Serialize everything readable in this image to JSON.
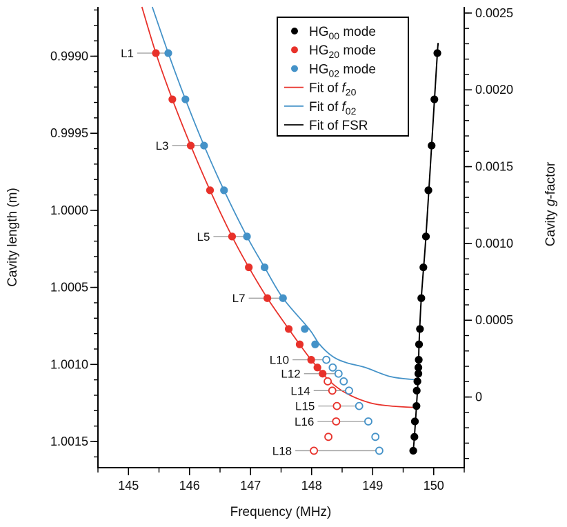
{
  "chart_data": {
    "type": "scatter",
    "xlabel": "Frequency (MHz)",
    "ylabel": "Cavity length (m)",
    "y2label_parts": [
      "Cavity ",
      "g",
      "-factor"
    ],
    "xlim": [
      144.5,
      150.5
    ],
    "ylim": [
      0.99868,
      1.00167
    ],
    "y_inverted": true,
    "y2lim": [
      -0.00046,
      0.00254
    ],
    "x_ticks": [
      "145",
      "146",
      "147",
      "148",
      "149",
      "150"
    ],
    "x_tick_values": [
      145,
      146,
      147,
      148,
      149,
      150
    ],
    "y_ticks": [
      "0.9990",
      "0.9995",
      "1.0000",
      "1.0005",
      "1.0010",
      "1.0015"
    ],
    "y_tick_values": [
      0.999,
      0.9995,
      1.0,
      1.0005,
      1.001,
      1.0015
    ],
    "y2_ticks": [
      "0.0025",
      "0.0020",
      "0.0015",
      "0.0010",
      "0.0005",
      "0"
    ],
    "y2_tick_values": [
      0.0025,
      0.002,
      0.0015,
      0.001,
      0.0005,
      0
    ],
    "grid": false,
    "legend_position": "top-right",
    "colors": {
      "hg00": "#000000",
      "hg20": "#e8312a",
      "hg02": "#4492c8",
      "connector": "#999999"
    },
    "legend": [
      {
        "kind": "marker",
        "color_key": "hg00",
        "base": "HG",
        "sub": "00",
        "rest": " mode"
      },
      {
        "kind": "marker",
        "color_key": "hg20",
        "base": "HG",
        "sub": "20",
        "rest": " mode"
      },
      {
        "kind": "marker",
        "color_key": "hg02",
        "base": "HG",
        "sub": "02",
        "rest": " mode"
      },
      {
        "kind": "line",
        "color_key": "hg20",
        "base": "Fit of ",
        "ital": "f",
        "sub": "20",
        "rest": ""
      },
      {
        "kind": "line",
        "color_key": "hg02",
        "base": "Fit of ",
        "ital": "f",
        "sub": "02",
        "rest": ""
      },
      {
        "kind": "line",
        "color_key": "hg00",
        "base": "Fit of FSR",
        "ital": "",
        "sub": "",
        "rest": ""
      }
    ],
    "lengths": [
      0.99898,
      0.99928,
      0.99958,
      0.99987,
      1.00017,
      1.00037,
      1.00057,
      1.00077,
      1.00087,
      1.00097,
      1.00102,
      1.00106,
      1.00111,
      1.00117,
      1.00127,
      1.00137,
      1.00147,
      1.00156
    ],
    "row_labels": [
      "L1",
      "",
      "L3",
      "",
      "L5",
      "",
      "L7",
      "",
      "",
      "L10",
      "",
      "L12",
      "",
      "L14",
      "L15",
      "L16",
      "",
      "L18"
    ],
    "series": [
      {
        "name": "HG00 mode",
        "color_key": "hg00",
        "x": [
          150.06,
          150.011,
          149.966,
          149.913,
          149.873,
          149.831,
          149.797,
          149.775,
          149.76,
          149.755,
          149.749,
          149.749,
          149.733,
          149.722,
          149.718,
          149.692,
          149.684,
          149.665
        ],
        "filled": [
          true,
          true,
          true,
          true,
          true,
          true,
          true,
          true,
          true,
          true,
          true,
          true,
          true,
          true,
          true,
          true,
          true,
          true
        ]
      },
      {
        "name": "HG20 mode",
        "color_key": "hg20",
        "x": [
          145.449,
          145.719,
          146.02,
          146.336,
          146.697,
          146.971,
          147.275,
          147.625,
          147.805,
          147.993,
          148.095,
          148.181,
          148.264,
          148.339,
          148.414,
          148.402,
          148.275,
          148.038
        ],
        "filled": [
          true,
          true,
          true,
          true,
          true,
          true,
          true,
          true,
          true,
          true,
          true,
          true,
          false,
          false,
          false,
          false,
          false,
          false
        ]
      },
      {
        "name": "HG02 mode",
        "color_key": "hg02",
        "x": [
          145.652,
          145.933,
          146.238,
          146.565,
          146.941,
          147.23,
          147.531,
          147.888,
          148.058,
          148.241,
          148.346,
          148.441,
          148.526,
          148.613,
          148.779,
          148.929,
          149.045,
          149.109
        ],
        "filled": [
          true,
          true,
          true,
          true,
          true,
          true,
          true,
          true,
          true,
          false,
          false,
          false,
          false,
          false,
          false,
          false,
          false,
          false
        ]
      }
    ],
    "fits": [
      {
        "name": "Fit of f20",
        "color_key": "hg20",
        "points": [
          [
            145.22,
            0.99868
          ],
          [
            145.449,
            0.99898
          ],
          [
            145.719,
            0.99928
          ],
          [
            146.02,
            0.99958
          ],
          [
            146.336,
            0.99987
          ],
          [
            146.697,
            1.00017
          ],
          [
            146.971,
            1.00037
          ],
          [
            147.275,
            1.00057
          ],
          [
            147.625,
            1.00077
          ],
          [
            147.805,
            1.00087
          ],
          [
            147.993,
            1.00097
          ],
          [
            148.3,
            1.00111
          ],
          [
            148.58,
            1.00119
          ],
          [
            148.96,
            1.00125
          ],
          [
            149.3,
            1.00127
          ],
          [
            149.72,
            1.00128
          ]
        ]
      },
      {
        "name": "Fit of f02",
        "color_key": "hg02",
        "points": [
          [
            145.39,
            0.99868
          ],
          [
            145.652,
            0.99898
          ],
          [
            145.933,
            0.99928
          ],
          [
            146.238,
            0.99958
          ],
          [
            146.565,
            0.99987
          ],
          [
            146.941,
            1.00017
          ],
          [
            147.23,
            1.00037
          ],
          [
            147.531,
            1.00057
          ],
          [
            147.96,
            1.00077
          ],
          [
            148.13,
            1.00087
          ],
          [
            148.35,
            1.00095
          ],
          [
            148.58,
            1.00099
          ],
          [
            148.88,
            1.00102
          ],
          [
            149.3,
            1.00108
          ],
          [
            149.72,
            1.0011
          ]
        ]
      },
      {
        "name": "Fit of FSR",
        "color_key": "hg00",
        "points": [
          [
            150.072,
            0.99893
          ],
          [
            150.06,
            0.99898
          ],
          [
            149.966,
            0.99958
          ],
          [
            149.873,
            1.00017
          ],
          [
            149.797,
            1.00057
          ],
          [
            149.76,
            1.00087
          ],
          [
            149.749,
            1.00106
          ],
          [
            149.718,
            1.00127
          ],
          [
            149.684,
            1.00147
          ],
          [
            149.665,
            1.00156
          ]
        ]
      }
    ]
  }
}
